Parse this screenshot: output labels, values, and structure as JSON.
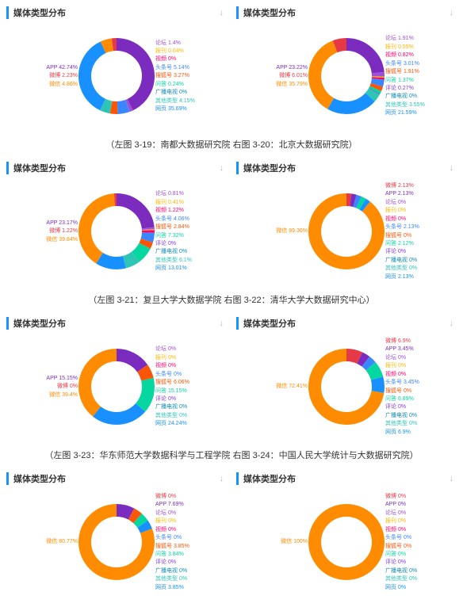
{
  "panel_title": "媒体类型分布",
  "download_glyph": "↓",
  "colors": {
    "app": "#7b2cbf",
    "weixin": "#ff8c00",
    "weibo": "#e63946",
    "wangye": "#1890ff",
    "luntan": "#9d4edd",
    "baokan": "#ffb703",
    "shipin": "#ff006e",
    "toutiao": "#3a86ff",
    "souhu": "#fb5607",
    "wenda": "#06d6a0",
    "pinglun": "#8338ec",
    "guangbo": "#118ab2",
    "qita": "#2ec4b6"
  },
  "captions": [
    "（左图 3-19：南都大数据研究院   右图 3-20：北京大数据研究院）",
    "（左图 3-21：复旦大学大数据学院   右图 3-22：清华大学大数据研究中心）",
    "（左图 3-23：华东师范大学数据科学与工程学院  右图 3-24：中国人民大学统计与大数据研究院）"
  ],
  "charts": [
    {
      "left_labels": [
        {
          "text": "APP 42.74%",
          "color": "#7b2cbf"
        },
        {
          "text": "微博 2.23%",
          "color": "#e63946"
        },
        {
          "text": "微信 4.86%",
          "color": "#ff8c00"
        }
      ],
      "right_labels": [
        {
          "text": "论坛 1.4%",
          "color": "#9d4edd"
        },
        {
          "text": "报刊 0.04%",
          "color": "#ffb703"
        },
        {
          "text": "视频 0%",
          "color": "#ff006e"
        },
        {
          "text": "头条号 5.14%",
          "color": "#3a86ff"
        },
        {
          "text": "搜狐号 3.27%",
          "color": "#fb5607"
        },
        {
          "text": "问答 0.24%",
          "color": "#06d6a0"
        },
        {
          "text": "广播电视 0%",
          "color": "#118ab2"
        },
        {
          "text": "其他类型 4.15%",
          "color": "#2ec4b6"
        },
        {
          "text": "网页 35.69%",
          "color": "#1890ff"
        }
      ],
      "slices": [
        {
          "v": 42.74,
          "c": "#7b2cbf"
        },
        {
          "v": 1.4,
          "c": "#9d4edd"
        },
        {
          "v": 0.04,
          "c": "#ffb703"
        },
        {
          "v": 5.14,
          "c": "#3a86ff"
        },
        {
          "v": 3.27,
          "c": "#fb5607"
        },
        {
          "v": 0.24,
          "c": "#06d6a0"
        },
        {
          "v": 4.15,
          "c": "#2ec4b6"
        },
        {
          "v": 35.69,
          "c": "#1890ff"
        },
        {
          "v": 4.86,
          "c": "#ff8c00"
        },
        {
          "v": 2.23,
          "c": "#e63946"
        }
      ]
    },
    {
      "left_labels": [
        {
          "text": "APP 23.22%",
          "color": "#7b2cbf"
        },
        {
          "text": "微博 6.01%",
          "color": "#e63946"
        },
        {
          "text": "微信 35.79%",
          "color": "#ff8c00"
        }
      ],
      "right_labels": [
        {
          "text": "论坛 1.91%",
          "color": "#9d4edd"
        },
        {
          "text": "报刊 0.55%",
          "color": "#ffb703"
        },
        {
          "text": "视频 0.82%",
          "color": "#ff006e"
        },
        {
          "text": "头条号 3.01%",
          "color": "#3a86ff"
        },
        {
          "text": "搜狐号 1.91%",
          "color": "#fb5607"
        },
        {
          "text": "问答 1.37%",
          "color": "#06d6a0"
        },
        {
          "text": "评论 0.27%",
          "color": "#8338ec"
        },
        {
          "text": "广播电视 0%",
          "color": "#118ab2"
        },
        {
          "text": "其他类型 3.55%",
          "color": "#2ec4b6"
        },
        {
          "text": "网页 21.59%",
          "color": "#1890ff"
        }
      ],
      "slices": [
        {
          "v": 23.22,
          "c": "#7b2cbf"
        },
        {
          "v": 1.91,
          "c": "#9d4edd"
        },
        {
          "v": 0.55,
          "c": "#ffb703"
        },
        {
          "v": 0.82,
          "c": "#ff006e"
        },
        {
          "v": 3.01,
          "c": "#3a86ff"
        },
        {
          "v": 1.91,
          "c": "#fb5607"
        },
        {
          "v": 1.37,
          "c": "#06d6a0"
        },
        {
          "v": 0.27,
          "c": "#8338ec"
        },
        {
          "v": 3.55,
          "c": "#2ec4b6"
        },
        {
          "v": 21.59,
          "c": "#1890ff"
        },
        {
          "v": 35.79,
          "c": "#ff8c00"
        },
        {
          "v": 6.01,
          "c": "#e63946"
        }
      ]
    },
    {
      "left_labels": [
        {
          "text": "APP 23.17%",
          "color": "#7b2cbf"
        },
        {
          "text": "微博 1.22%",
          "color": "#e63946"
        },
        {
          "text": "微信 39.84%",
          "color": "#ff8c00"
        }
      ],
      "right_labels": [
        {
          "text": "论坛 0.81%",
          "color": "#9d4edd"
        },
        {
          "text": "报刊 0.41%",
          "color": "#ffb703"
        },
        {
          "text": "视频 1.22%",
          "color": "#ff006e"
        },
        {
          "text": "头条号 4.06%",
          "color": "#3a86ff"
        },
        {
          "text": "搜狐号 2.84%",
          "color": "#fb5607"
        },
        {
          "text": "问答 7.32%",
          "color": "#06d6a0"
        },
        {
          "text": "评论 0%",
          "color": "#8338ec"
        },
        {
          "text": "广播电视 0%",
          "color": "#118ab2"
        },
        {
          "text": "其他类型 6.1%",
          "color": "#2ec4b6"
        },
        {
          "text": "网页 13.01%",
          "color": "#1890ff"
        }
      ],
      "slices": [
        {
          "v": 23.17,
          "c": "#7b2cbf"
        },
        {
          "v": 0.81,
          "c": "#9d4edd"
        },
        {
          "v": 0.41,
          "c": "#ffb703"
        },
        {
          "v": 1.22,
          "c": "#ff006e"
        },
        {
          "v": 4.06,
          "c": "#3a86ff"
        },
        {
          "v": 2.84,
          "c": "#fb5607"
        },
        {
          "v": 7.32,
          "c": "#06d6a0"
        },
        {
          "v": 6.1,
          "c": "#2ec4b6"
        },
        {
          "v": 13.01,
          "c": "#1890ff"
        },
        {
          "v": 39.84,
          "c": "#ff8c00"
        },
        {
          "v": 1.22,
          "c": "#e63946"
        }
      ]
    },
    {
      "left_labels": [
        {
          "text": "微信 89.36%",
          "color": "#ff8c00"
        }
      ],
      "right_labels": [
        {
          "text": "微博 2.13%",
          "color": "#e63946"
        },
        {
          "text": "APP 2.13%",
          "color": "#7b2cbf"
        },
        {
          "text": "论坛 0%",
          "color": "#9d4edd"
        },
        {
          "text": "报刊 0%",
          "color": "#ffb703"
        },
        {
          "text": "视频 0%",
          "color": "#ff006e"
        },
        {
          "text": "头条号 2.13%",
          "color": "#3a86ff"
        },
        {
          "text": "搜狐号 0%",
          "color": "#fb5607"
        },
        {
          "text": "问答 2.12%",
          "color": "#06d6a0"
        },
        {
          "text": "评论 0%",
          "color": "#8338ec"
        },
        {
          "text": "广播电视 0%",
          "color": "#118ab2"
        },
        {
          "text": "其他类型 0%",
          "color": "#2ec4b6"
        },
        {
          "text": "网页 2.13%",
          "color": "#1890ff"
        }
      ],
      "slices": [
        {
          "v": 2.13,
          "c": "#e63946"
        },
        {
          "v": 2.13,
          "c": "#7b2cbf"
        },
        {
          "v": 2.13,
          "c": "#3a86ff"
        },
        {
          "v": 2.12,
          "c": "#06d6a0"
        },
        {
          "v": 2.13,
          "c": "#1890ff"
        },
        {
          "v": 89.36,
          "c": "#ff8c00"
        }
      ]
    },
    {
      "left_labels": [
        {
          "text": "APP 15.15%",
          "color": "#7b2cbf"
        },
        {
          "text": "微博 0%",
          "color": "#e63946"
        },
        {
          "text": "微信 39.4%",
          "color": "#ff8c00"
        }
      ],
      "right_labels": [
        {
          "text": "论坛 0%",
          "color": "#9d4edd"
        },
        {
          "text": "报刊 0%",
          "color": "#ffb703"
        },
        {
          "text": "视频 0%",
          "color": "#ff006e"
        },
        {
          "text": "头条号 0%",
          "color": "#3a86ff"
        },
        {
          "text": "搜狐号 6.06%",
          "color": "#fb5607"
        },
        {
          "text": "问答 15.15%",
          "color": "#06d6a0"
        },
        {
          "text": "评论 0%",
          "color": "#8338ec"
        },
        {
          "text": "广播电视 0%",
          "color": "#118ab2"
        },
        {
          "text": "其他类型 0%",
          "color": "#2ec4b6"
        },
        {
          "text": "网页 24.24%",
          "color": "#1890ff"
        }
      ],
      "slices": [
        {
          "v": 15.15,
          "c": "#7b2cbf"
        },
        {
          "v": 6.06,
          "c": "#fb5607"
        },
        {
          "v": 15.15,
          "c": "#06d6a0"
        },
        {
          "v": 24.24,
          "c": "#1890ff"
        },
        {
          "v": 39.4,
          "c": "#ff8c00"
        }
      ]
    },
    {
      "left_labels": [
        {
          "text": "微信 72.41%",
          "color": "#ff8c00"
        }
      ],
      "right_labels": [
        {
          "text": "微博 6.9%",
          "color": "#e63946"
        },
        {
          "text": "APP 3.45%",
          "color": "#7b2cbf"
        },
        {
          "text": "论坛 0%",
          "color": "#9d4edd"
        },
        {
          "text": "报刊 0%",
          "color": "#ffb703"
        },
        {
          "text": "视频 0%",
          "color": "#ff006e"
        },
        {
          "text": "头条号 3.45%",
          "color": "#3a86ff"
        },
        {
          "text": "搜狐号 0%",
          "color": "#fb5607"
        },
        {
          "text": "问答 6.89%",
          "color": "#06d6a0"
        },
        {
          "text": "评论 0%",
          "color": "#8338ec"
        },
        {
          "text": "广播电视 0%",
          "color": "#118ab2"
        },
        {
          "text": "其他类型 0%",
          "color": "#2ec4b6"
        },
        {
          "text": "网页 6.9%",
          "color": "#1890ff"
        }
      ],
      "slices": [
        {
          "v": 6.9,
          "c": "#e63946"
        },
        {
          "v": 3.45,
          "c": "#7b2cbf"
        },
        {
          "v": 3.45,
          "c": "#3a86ff"
        },
        {
          "v": 6.89,
          "c": "#06d6a0"
        },
        {
          "v": 6.9,
          "c": "#1890ff"
        },
        {
          "v": 72.41,
          "c": "#ff8c00"
        }
      ]
    },
    {
      "left_labels": [
        {
          "text": "微信 80.77%",
          "color": "#ff8c00"
        }
      ],
      "right_labels": [
        {
          "text": "微博 0%",
          "color": "#e63946"
        },
        {
          "text": "APP 7.69%",
          "color": "#7b2cbf"
        },
        {
          "text": "论坛 0%",
          "color": "#9d4edd"
        },
        {
          "text": "报刊 0%",
          "color": "#ffb703"
        },
        {
          "text": "视频 0%",
          "color": "#ff006e"
        },
        {
          "text": "头条号 0%",
          "color": "#3a86ff"
        },
        {
          "text": "搜狐号 3.85%",
          "color": "#fb5607"
        },
        {
          "text": "问答 3.84%",
          "color": "#06d6a0"
        },
        {
          "text": "评论 0%",
          "color": "#8338ec"
        },
        {
          "text": "广播电视 0%",
          "color": "#118ab2"
        },
        {
          "text": "其他类型 0%",
          "color": "#2ec4b6"
        },
        {
          "text": "网页 3.85%",
          "color": "#1890ff"
        }
      ],
      "slices": [
        {
          "v": 7.69,
          "c": "#7b2cbf"
        },
        {
          "v": 3.85,
          "c": "#fb5607"
        },
        {
          "v": 3.84,
          "c": "#06d6a0"
        },
        {
          "v": 3.85,
          "c": "#1890ff"
        },
        {
          "v": 80.77,
          "c": "#ff8c00"
        }
      ]
    },
    {
      "left_labels": [
        {
          "text": "微信 100%",
          "color": "#ff8c00"
        }
      ],
      "right_labels": [
        {
          "text": "微博 0%",
          "color": "#e63946"
        },
        {
          "text": "APP 0%",
          "color": "#7b2cbf"
        },
        {
          "text": "论坛 0%",
          "color": "#9d4edd"
        },
        {
          "text": "报刊 0%",
          "color": "#ffb703"
        },
        {
          "text": "视频 0%",
          "color": "#ff006e"
        },
        {
          "text": "头条号 0%",
          "color": "#3a86ff"
        },
        {
          "text": "搜狐号 0%",
          "color": "#fb5607"
        },
        {
          "text": "问答 0%",
          "color": "#06d6a0"
        },
        {
          "text": "评论 0%",
          "color": "#8338ec"
        },
        {
          "text": "广播电视 0%",
          "color": "#118ab2"
        },
        {
          "text": "其他类型 0%",
          "color": "#2ec4b6"
        },
        {
          "text": "网页 0%",
          "color": "#1890ff"
        }
      ],
      "slices": [
        {
          "v": 100,
          "c": "#ff8c00"
        }
      ]
    }
  ],
  "donut": {
    "r": 40,
    "stroke": 16
  }
}
